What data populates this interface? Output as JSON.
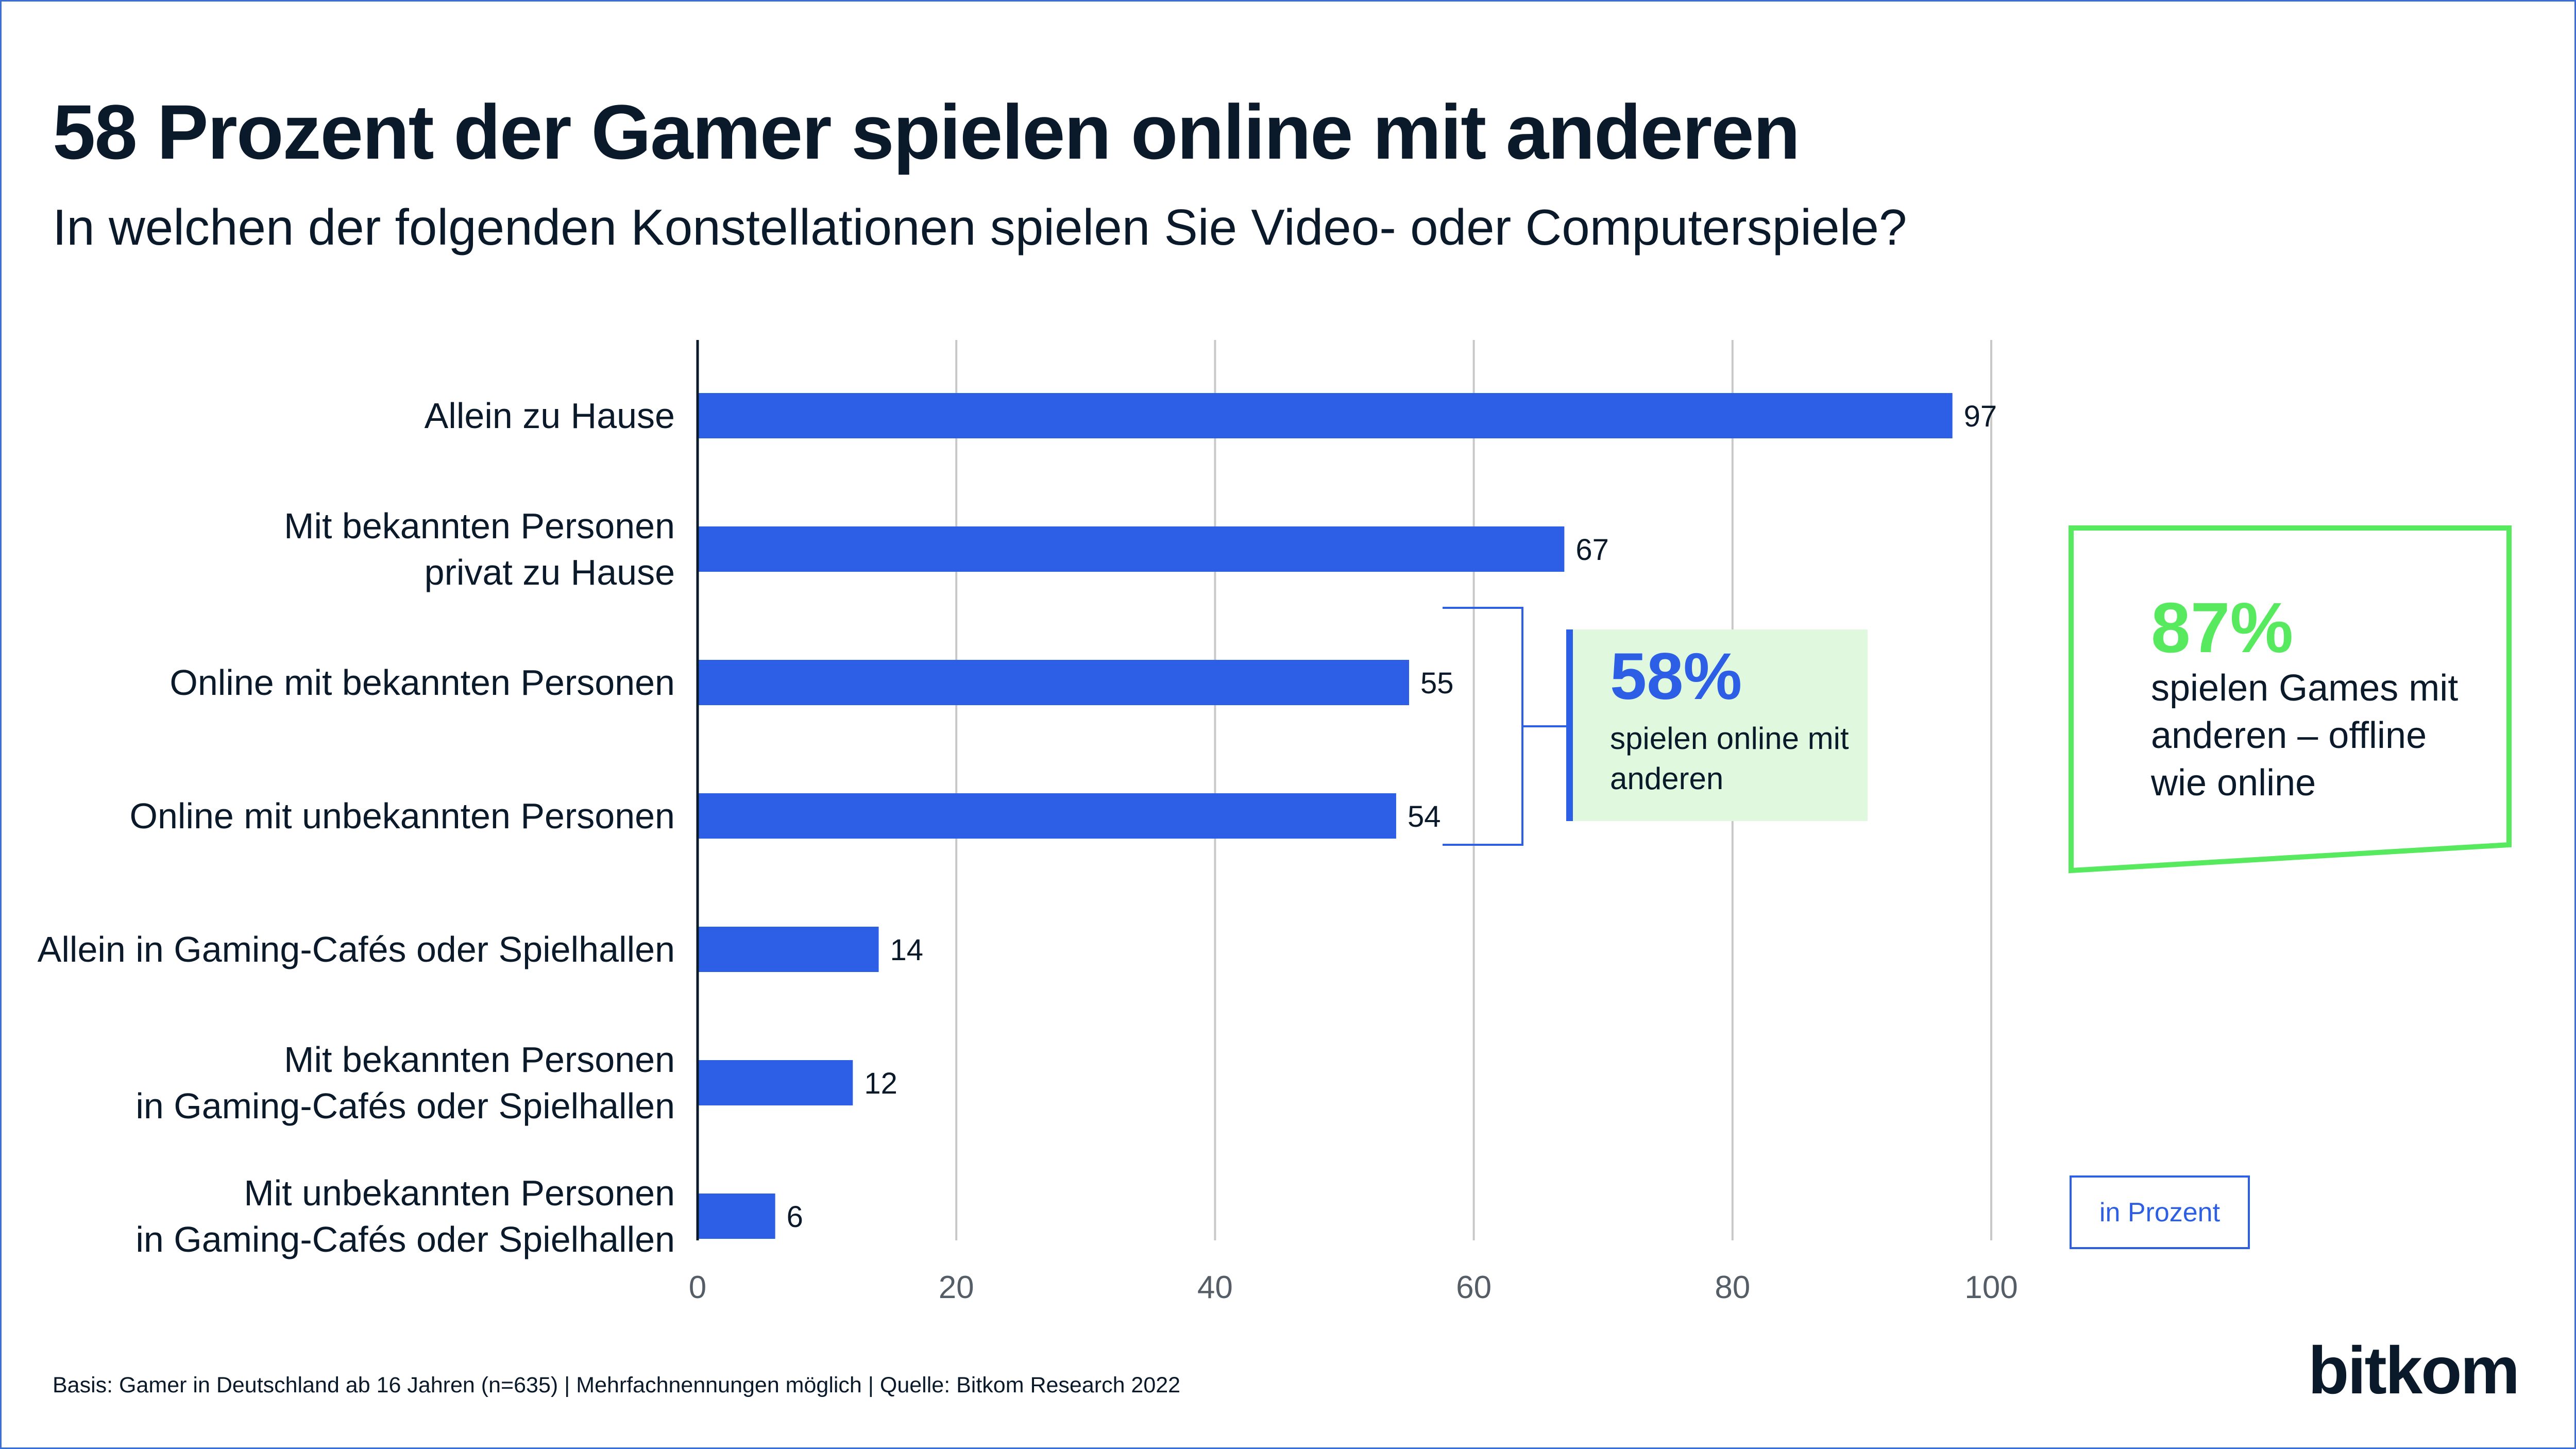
{
  "header": {
    "title": "58 Prozent der Gamer spielen online mit anderen",
    "subtitle": "In welchen der folgenden Konstellationen spielen Sie Video- oder Computerspiele?"
  },
  "chart_data": {
    "type": "bar",
    "orientation": "horizontal",
    "categories": [
      [
        "Allein zu Hause"
      ],
      [
        "Mit bekannten Personen",
        "privat zu Hause"
      ],
      [
        "Online mit bekannten Personen"
      ],
      [
        "Online mit unbekannten Personen"
      ],
      [
        "Allein in Gaming-Cafés oder Spielhallen"
      ],
      [
        "Mit bekannten Personen",
        "in Gaming-Cafés oder Spielhallen"
      ],
      [
        "Mit unbekannten Personen",
        "in Gaming-Cafés oder Spielhallen"
      ]
    ],
    "values": [
      97,
      67,
      55,
      54,
      14,
      12,
      6
    ],
    "xlim": [
      0,
      100
    ],
    "xticks": [
      0,
      20,
      40,
      60,
      80,
      100
    ],
    "grid": true,
    "bar_color": "#2c5fe6",
    "unit": "in Prozent"
  },
  "callouts": {
    "online": {
      "percent": "58%",
      "text": "spielen online mit anderen",
      "bg_color": "#e0f8dd",
      "accent_color": "#2c5fe6"
    },
    "total": {
      "percent": "87%",
      "text": "spielen Games mit anderen – offline wie online",
      "accent_color": "#57ea5f"
    }
  },
  "footnote": "Basis: Gamer in Deutschland ab 16 Jahren (n=635) | Mehrfachnennungen möglich | Quelle: Bitkom Research 2022",
  "logo": "bitkom"
}
